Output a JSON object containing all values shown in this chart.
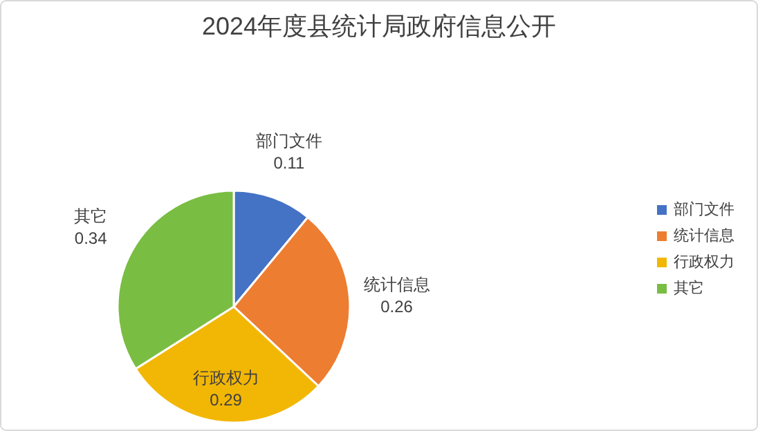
{
  "chart_data": {
    "type": "pie",
    "title": "2024年度县统计局政府信息公开",
    "categories": [
      "部门文件",
      "统计信息",
      "行政权力",
      "其它"
    ],
    "values": [
      0.11,
      0.26,
      0.29,
      0.34
    ],
    "colors": [
      "#4472c4",
      "#ed7d31",
      "#f2b705",
      "#79bd43"
    ],
    "data_labels": true,
    "legend": "right"
  }
}
